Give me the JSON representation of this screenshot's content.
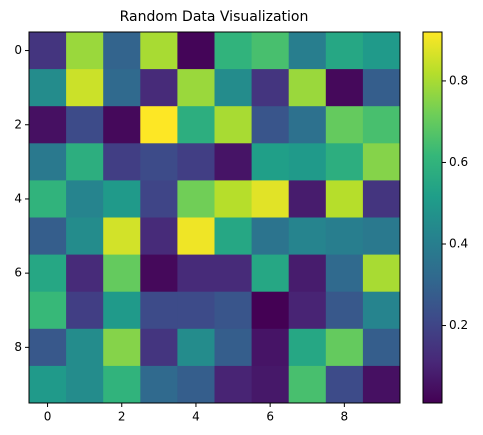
{
  "chart_data": {
    "type": "heatmap",
    "title": "Random Data Visualization",
    "colormap": "viridis",
    "values": [
      [
        0.15,
        0.78,
        0.3,
        0.8,
        0.02,
        0.6,
        0.65,
        0.4,
        0.55,
        0.5
      ],
      [
        0.45,
        0.85,
        0.32,
        0.12,
        0.78,
        0.45,
        0.15,
        0.78,
        0.03,
        0.28
      ],
      [
        0.05,
        0.22,
        0.03,
        0.92,
        0.58,
        0.8,
        0.25,
        0.35,
        0.7,
        0.65
      ],
      [
        0.38,
        0.58,
        0.18,
        0.22,
        0.18,
        0.06,
        0.52,
        0.5,
        0.58,
        0.75
      ],
      [
        0.6,
        0.42,
        0.5,
        0.2,
        0.72,
        0.82,
        0.88,
        0.08,
        0.82,
        0.15
      ],
      [
        0.28,
        0.45,
        0.86,
        0.12,
        0.9,
        0.55,
        0.36,
        0.42,
        0.4,
        0.38
      ],
      [
        0.55,
        0.12,
        0.7,
        0.03,
        0.12,
        0.12,
        0.55,
        0.08,
        0.32,
        0.8
      ],
      [
        0.62,
        0.18,
        0.5,
        0.22,
        0.22,
        0.25,
        0.01,
        0.1,
        0.26,
        0.42
      ],
      [
        0.26,
        0.45,
        0.75,
        0.15,
        0.45,
        0.28,
        0.06,
        0.55,
        0.7,
        0.28
      ],
      [
        0.5,
        0.45,
        0.6,
        0.32,
        0.28,
        0.1,
        0.07,
        0.65,
        0.22,
        0.05
      ]
    ],
    "xlim": [
      -0.5,
      9.5
    ],
    "ylim": [
      -0.5,
      9.5
    ],
    "y_inverted": true,
    "xticks": [
      0,
      2,
      4,
      6,
      8
    ],
    "yticks": [
      0,
      2,
      4,
      6,
      8
    ],
    "clim": [
      0.01,
      0.92
    ],
    "cticks": [
      0.2,
      0.4,
      0.6,
      0.8
    ]
  }
}
